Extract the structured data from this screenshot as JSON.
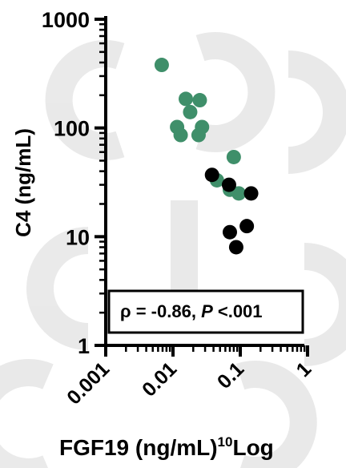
{
  "chart_data": {
    "type": "scatter",
    "xscale": "log",
    "yscale": "log",
    "xlim": [
      0.001,
      1
    ],
    "ylim": [
      1,
      1000
    ],
    "x_ticks": [
      "0.001",
      "0.01",
      "0.1",
      "1"
    ],
    "y_ticks": [
      "1",
      "10",
      "100",
      "1000"
    ],
    "xlabel": "FGF19 (ng/mL)",
    "xlabel_suffix_sup": "10",
    "xlabel_suffix": "Log",
    "ylabel": "C4 (ng/mL)",
    "annotation": {
      "prefix": "ρ = -0.86, ",
      "p_letter": "P",
      "suffix": " <.001"
    },
    "series": [
      {
        "color": "#3f8f6a",
        "points": [
          {
            "x": 0.0068,
            "y": 380
          },
          {
            "x": 0.0155,
            "y": 185
          },
          {
            "x": 0.025,
            "y": 180
          },
          {
            "x": 0.018,
            "y": 140
          },
          {
            "x": 0.0115,
            "y": 102
          },
          {
            "x": 0.027,
            "y": 102
          },
          {
            "x": 0.013,
            "y": 86
          },
          {
            "x": 0.024,
            "y": 86
          },
          {
            "x": 0.08,
            "y": 54
          },
          {
            "x": 0.045,
            "y": 33
          },
          {
            "x": 0.07,
            "y": 27
          },
          {
            "x": 0.095,
            "y": 25
          }
        ]
      },
      {
        "color": "#000000",
        "points": [
          {
            "x": 0.038,
            "y": 37
          },
          {
            "x": 0.068,
            "y": 30
          },
          {
            "x": 0.145,
            "y": 25
          },
          {
            "x": 0.125,
            "y": 12.5
          },
          {
            "x": 0.07,
            "y": 11
          },
          {
            "x": 0.087,
            "y": 8
          }
        ]
      }
    ],
    "colors": {
      "axis": "#000000",
      "watermark": "#e6e6e6"
    }
  }
}
